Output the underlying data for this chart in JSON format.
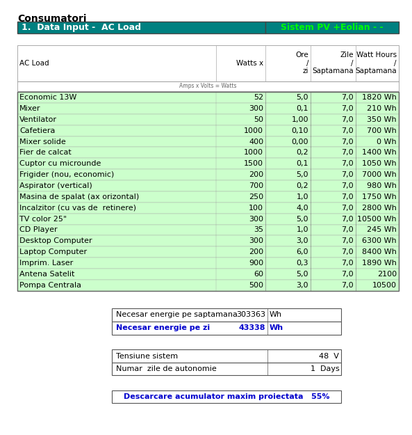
{
  "title": "Consumatori",
  "header_left": "1.  Data Input -  AC Load",
  "header_right": "Sistem PV +Eolian - -",
  "subheader": "Amps x Volts = Watts",
  "rows": [
    [
      "Economic 13W",
      52,
      "5,0",
      "7,0",
      "1820 Wh"
    ],
    [
      "Mixer",
      300,
      "0,1",
      "7,0",
      "210 Wh"
    ],
    [
      "Ventilator",
      50,
      "1,00",
      "7,0",
      "350 Wh"
    ],
    [
      "Cafetiera",
      1000,
      "0,10",
      "7,0",
      "700 Wh"
    ],
    [
      "Mixer solide",
      400,
      "0,00",
      "7,0",
      "0 Wh"
    ],
    [
      "Fier de calcat",
      1000,
      "0,2",
      "7,0",
      "1400 Wh"
    ],
    [
      "Cuptor cu microunde",
      1500,
      "0,1",
      "7,0",
      "1050 Wh"
    ],
    [
      "Frigider (nou, economic)",
      200,
      "5,0",
      "7,0",
      "7000 Wh"
    ],
    [
      "Aspirator (vertical)",
      700,
      "0,2",
      "7,0",
      "980 Wh"
    ],
    [
      "Masina de spalat (ax orizontal)",
      250,
      "1,0",
      "7,0",
      "1750 Wh"
    ],
    [
      "Incalzitor (cu vas de  retinere)",
      100,
      "4,0",
      "7,0",
      "2800 Wh"
    ],
    [
      "TV color 25\"",
      300,
      "5,0",
      "7,0",
      "10500 Wh"
    ],
    [
      "CD Player",
      35,
      "1,0",
      "7,0",
      "245 Wh"
    ],
    [
      "Desktop Computer",
      300,
      "3,0",
      "7,0",
      "6300 Wh"
    ],
    [
      "Laptop Computer",
      200,
      "6,0",
      "7,0",
      "8400 Wh"
    ],
    [
      "Imprim. Laser",
      900,
      "0,3",
      "7,0",
      "1890 Wh"
    ],
    [
      "Antena Satelit",
      60,
      "5,0",
      "7,0",
      "2100"
    ],
    [
      "Pompa Centrala",
      500,
      "3,0",
      "7,0",
      "10500"
    ]
  ],
  "summary_rows": [
    {
      "label": "Necesar energie pe saptamana",
      "value": "303363",
      "unit": "Wh",
      "bold": false,
      "color_label": "#000000",
      "color_value": "#000000"
    },
    {
      "label": "Necesar energie pe zi",
      "value": "43338",
      "unit": "Wh",
      "bold": true,
      "color_label": "#0000cc",
      "color_value": "#0000cc"
    }
  ],
  "system_rows": [
    {
      "label": "Tensiune sistem",
      "value": "48",
      "unit": "V"
    },
    {
      "label": "Numar  zile de autonomie",
      "value": "1",
      "unit": "Days"
    }
  ],
  "discharge_text": "Descarcare acumulator maxim proiectata   55%",
  "bg_main": "#ccffcc",
  "bg_header": "#008080",
  "color_header_left": "#ffffff",
  "color_header_right": "#00ff00",
  "font_size": 8.0
}
